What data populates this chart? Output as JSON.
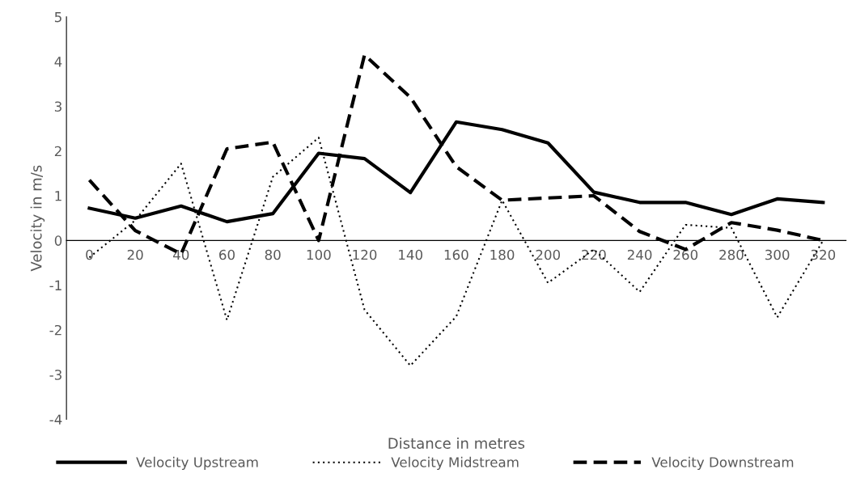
{
  "chart_data": {
    "type": "line",
    "xlabel": "Distance in metres",
    "ylabel": "Velocity in m/s",
    "categories": [
      "0",
      "20",
      "40",
      "60",
      "80",
      "100",
      "120",
      "140",
      "160",
      "180",
      "200",
      "220",
      "240",
      "260",
      "280",
      "300",
      "320"
    ],
    "series": [
      {
        "name": "Velocity Upstream",
        "color": "#000000",
        "line_style": "solid",
        "values": [
          0.72,
          0.5,
          0.77,
          0.42,
          0.6,
          1.95,
          1.83,
          1.07,
          2.65,
          2.48,
          2.18,
          1.08,
          0.85,
          0.85,
          0.58,
          0.93,
          0.85
        ]
      },
      {
        "name": "Velocity Midstream",
        "color": "#000000",
        "line_style": "dotted",
        "values": [
          -0.38,
          0.45,
          1.72,
          -1.78,
          1.42,
          2.3,
          -1.55,
          -2.8,
          -1.7,
          0.9,
          -0.95,
          -0.2,
          -1.15,
          0.35,
          0.28,
          -1.72,
          0.0
        ]
      },
      {
        "name": "Velocity Downstream",
        "color": "#000000",
        "line_style": "dashed",
        "values": [
          1.35,
          0.22,
          -0.3,
          2.05,
          2.2,
          0.0,
          4.15,
          3.2,
          1.65,
          0.9,
          0.95,
          1.0,
          0.2,
          -0.2,
          0.4,
          0.23,
          0.0
        ]
      }
    ],
    "ylim": [
      -4,
      5
    ],
    "yticks": [
      -4,
      -3,
      -2,
      -1,
      0,
      1,
      2,
      3,
      4,
      5
    ],
    "grid": false,
    "legend": "bottom",
    "marker": "none"
  }
}
